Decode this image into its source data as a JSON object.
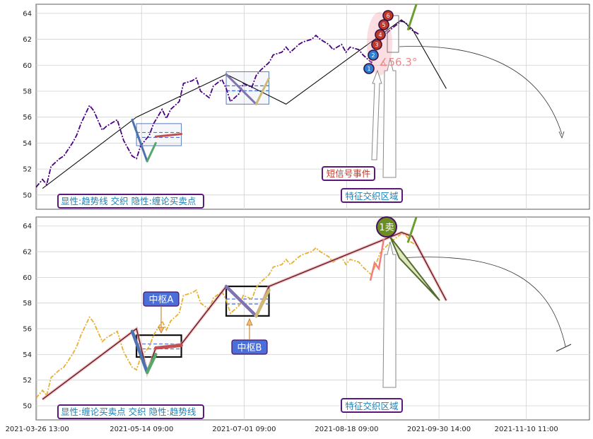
{
  "chart_data": [
    {
      "type": "line",
      "panel": "top",
      "title": "",
      "xlabel": "",
      "ylabel": "",
      "ylim": [
        48.9,
        64.7
      ],
      "yticks": [
        50,
        52,
        54,
        56,
        58,
        60,
        62,
        64
      ],
      "grid": true,
      "series": [
        {
          "role": "price",
          "color": "#4B0082",
          "x": [
            "2021-03-26",
            "2021-03-29",
            "2021-03-31",
            "2021-04-02",
            "2021-04-06",
            "2021-04-08",
            "2021-04-12",
            "2021-04-14",
            "2021-04-16",
            "2021-04-20",
            "2021-04-22",
            "2021-04-26",
            "2021-04-28",
            "2021-05-03",
            "2021-05-06",
            "2021-05-10",
            "2021-05-12",
            "2021-05-14",
            "2021-05-18",
            "2021-05-20",
            "2021-05-24",
            "2021-05-26",
            "2021-05-28",
            "2021-06-01",
            "2021-06-03",
            "2021-06-07",
            "2021-06-09",
            "2021-06-11",
            "2021-06-15",
            "2021-06-17",
            "2021-06-21",
            "2021-06-23",
            "2021-06-25",
            "2021-06-29",
            "2021-07-01",
            "2021-07-05",
            "2021-07-07",
            "2021-07-09",
            "2021-07-13",
            "2021-07-15",
            "2021-07-19",
            "2021-07-21",
            "2021-07-23",
            "2021-07-27",
            "2021-07-29",
            "2021-08-02",
            "2021-08-04",
            "2021-08-06",
            "2021-08-10",
            "2021-08-12",
            "2021-08-16",
            "2021-08-18",
            "2021-08-20",
            "2021-08-24",
            "2021-08-26",
            "2021-08-30",
            "2021-09-01",
            "2021-09-03",
            "2021-09-07",
            "2021-09-09",
            "2021-09-13",
            "2021-09-15",
            "2021-09-17",
            "2021-09-21"
          ],
          "values": [
            50.6,
            51.2,
            50.8,
            52.2,
            52.8,
            53.0,
            54.0,
            54.6,
            55.5,
            56.9,
            56.5,
            55.0,
            55.3,
            55.8,
            54.2,
            53.0,
            52.8,
            53.8,
            54.6,
            55.5,
            56.6,
            55.9,
            56.6,
            57.2,
            58.6,
            58.8,
            59.0,
            58.0,
            57.5,
            58.4,
            58.9,
            58.2,
            57.2,
            57.8,
            58.6,
            58.3,
            59.2,
            59.6,
            60.2,
            60.8,
            61.0,
            61.4,
            61.0,
            61.6,
            61.8,
            62.0,
            62.3,
            62.0,
            61.6,
            61.2,
            61.6,
            61.0,
            61.4,
            61.2,
            60.8,
            60.2,
            61.0,
            61.9,
            62.6,
            62.9,
            63.4,
            63.3,
            62.8,
            62.4
          ]
        }
      ],
      "trend_line": {
        "x": [
          "2021-03-29",
          "2021-05-12",
          "2021-06-23",
          "2021-07-21",
          "2021-09-13",
          "2021-09-18",
          "2021-10-04"
        ],
        "values": [
          50.5,
          56.0,
          59.3,
          57.0,
          63.5,
          62.8,
          58.2
        ]
      },
      "strokes": [
        {
          "color": "#4c72b0",
          "x": [
            "2021-05-10",
            "2021-05-17"
          ],
          "values": [
            55.8,
            52.6
          ]
        },
        {
          "color": "#55a868",
          "x": [
            "2021-05-17",
            "2021-05-21"
          ],
          "values": [
            52.6,
            54.0
          ]
        },
        {
          "color": "#c44e52",
          "x": [
            "2021-05-21",
            "2021-06-02"
          ],
          "values": [
            54.5,
            54.7
          ]
        },
        {
          "color": "#8172b2",
          "x": [
            "2021-06-23",
            "2021-07-07"
          ],
          "values": [
            59.3,
            57.0
          ]
        },
        {
          "color": "#ccb974",
          "x": [
            "2021-07-07",
            "2021-07-13"
          ],
          "values": [
            57.0,
            59.0
          ]
        }
      ],
      "zones": [
        {
          "x": [
            "2021-05-12",
            "2021-06-02"
          ],
          "ylim": [
            53.8,
            55.5
          ],
          "color": "#5a7fbf"
        },
        {
          "x": [
            "2021-06-23",
            "2021-07-13"
          ],
          "ylim": [
            57.0,
            59.5
          ],
          "color": "#5a7fbf"
        }
      ],
      "signal_points": [
        "1",
        "2",
        "3",
        "4",
        "5",
        "6"
      ],
      "angle_label": "∡56.3°",
      "annotations": [
        {
          "text": "短信号事件",
          "color": "#c0392b"
        },
        {
          "text": "特征交织区域",
          "color": "#2f7fbf"
        }
      ],
      "legend_text": "显性:趋势线 交织 隐性:缠论买卖点"
    },
    {
      "type": "line",
      "panel": "bottom",
      "title": "",
      "xlabel": "",
      "ylabel": "",
      "ylim": [
        48.9,
        64.7
      ],
      "yticks": [
        50,
        52,
        54,
        56,
        58,
        60,
        62,
        64
      ],
      "grid": true,
      "series": [
        {
          "role": "price",
          "color": "#E8B030",
          "x": [
            "2021-03-26",
            "2021-03-29",
            "2021-03-31",
            "2021-04-02",
            "2021-04-06",
            "2021-04-08",
            "2021-04-12",
            "2021-04-14",
            "2021-04-16",
            "2021-04-20",
            "2021-04-22",
            "2021-04-26",
            "2021-04-28",
            "2021-05-03",
            "2021-05-06",
            "2021-05-10",
            "2021-05-12",
            "2021-05-14",
            "2021-05-18",
            "2021-05-20",
            "2021-05-24",
            "2021-05-26",
            "2021-05-28",
            "2021-06-01",
            "2021-06-03",
            "2021-06-07",
            "2021-06-09",
            "2021-06-11",
            "2021-06-15",
            "2021-06-17",
            "2021-06-21",
            "2021-06-23",
            "2021-06-25",
            "2021-06-29",
            "2021-07-01",
            "2021-07-05",
            "2021-07-07",
            "2021-07-09",
            "2021-07-13",
            "2021-07-15",
            "2021-07-19",
            "2021-07-21",
            "2021-07-23",
            "2021-07-27",
            "2021-07-29",
            "2021-08-02",
            "2021-08-04",
            "2021-08-06",
            "2021-08-10",
            "2021-08-12",
            "2021-08-16",
            "2021-08-18",
            "2021-08-20",
            "2021-08-24",
            "2021-08-26",
            "2021-08-30",
            "2021-09-01",
            "2021-09-03",
            "2021-09-07",
            "2021-09-09",
            "2021-09-13",
            "2021-09-15",
            "2021-09-17",
            "2021-09-21"
          ],
          "values": [
            50.6,
            51.2,
            50.8,
            52.2,
            52.8,
            53.0,
            54.0,
            54.6,
            55.5,
            56.9,
            56.5,
            55.0,
            55.3,
            55.8,
            54.2,
            53.0,
            52.8,
            53.8,
            54.6,
            55.5,
            56.6,
            55.9,
            56.6,
            57.2,
            58.6,
            58.8,
            59.0,
            58.0,
            57.5,
            58.4,
            58.9,
            58.2,
            57.2,
            57.8,
            58.6,
            58.3,
            59.2,
            59.6,
            60.2,
            60.8,
            61.0,
            61.4,
            61.0,
            61.6,
            61.8,
            62.0,
            62.3,
            62.0,
            61.6,
            61.2,
            61.6,
            61.0,
            61.4,
            61.2,
            60.8,
            60.2,
            61.0,
            61.9,
            62.6,
            62.9,
            63.4,
            63.3,
            62.8,
            62.4
          ]
        }
      ],
      "trend_line": {
        "x": [
          "2021-03-29",
          "2021-05-12",
          "2021-05-17",
          "2021-05-21",
          "2021-06-02",
          "2021-06-23",
          "2021-07-07",
          "2021-07-13",
          "2021-09-13",
          "2021-09-18",
          "2021-10-04"
        ],
        "values": [
          50.5,
          56.0,
          52.6,
          54.5,
          54.8,
          59.3,
          57.0,
          59.3,
          63.5,
          63.2,
          58.2
        ]
      },
      "strokes": [
        {
          "color": "#4c72b0",
          "x": [
            "2021-05-10",
            "2021-05-17"
          ],
          "values": [
            55.8,
            52.6
          ]
        },
        {
          "color": "#55a868",
          "x": [
            "2021-05-17",
            "2021-05-21"
          ],
          "values": [
            52.6,
            54.0
          ]
        },
        {
          "color": "#c44e52",
          "x": [
            "2021-05-21",
            "2021-06-02"
          ],
          "values": [
            54.5,
            54.7
          ]
        },
        {
          "color": "#8172b2",
          "x": [
            "2021-06-23",
            "2021-07-07"
          ],
          "values": [
            59.3,
            57.0
          ]
        },
        {
          "color": "#ccb974",
          "x": [
            "2021-07-07",
            "2021-07-13"
          ],
          "values": [
            57.0,
            59.0
          ]
        }
      ],
      "zones": [
        {
          "x": [
            "2021-05-12",
            "2021-06-02"
          ],
          "ylim": [
            53.8,
            55.5
          ],
          "color": "#111111",
          "label": "中枢A"
        },
        {
          "x": [
            "2021-06-23",
            "2021-07-13"
          ],
          "ylim": [
            57.0,
            59.3
          ],
          "color": "#111111",
          "label": "中枢B"
        }
      ],
      "sell_marker": "1卖",
      "annotations": [
        {
          "text": "特征交织区域",
          "color": "#2f7fbf"
        }
      ],
      "legend_text": "显性:缠论买卖点 交织 隐性:趋势线"
    }
  ],
  "x_axis": {
    "tick_labels": [
      "2021-03-26 13:00",
      "2021-05-14 09:00",
      "2021-07-01 09:00",
      "2021-08-18 09:00",
      "2021-09-30 14:00",
      "2021-11-10 11:00"
    ],
    "range": [
      "2021-03-26",
      "2021-12-10"
    ]
  },
  "colors": {
    "grid": "#d0d0d0",
    "label_border": "#5b1a7a",
    "label_fill": "#4a6fd8",
    "signal_red": "#c0392b",
    "sell_green": "#6b8e23"
  }
}
